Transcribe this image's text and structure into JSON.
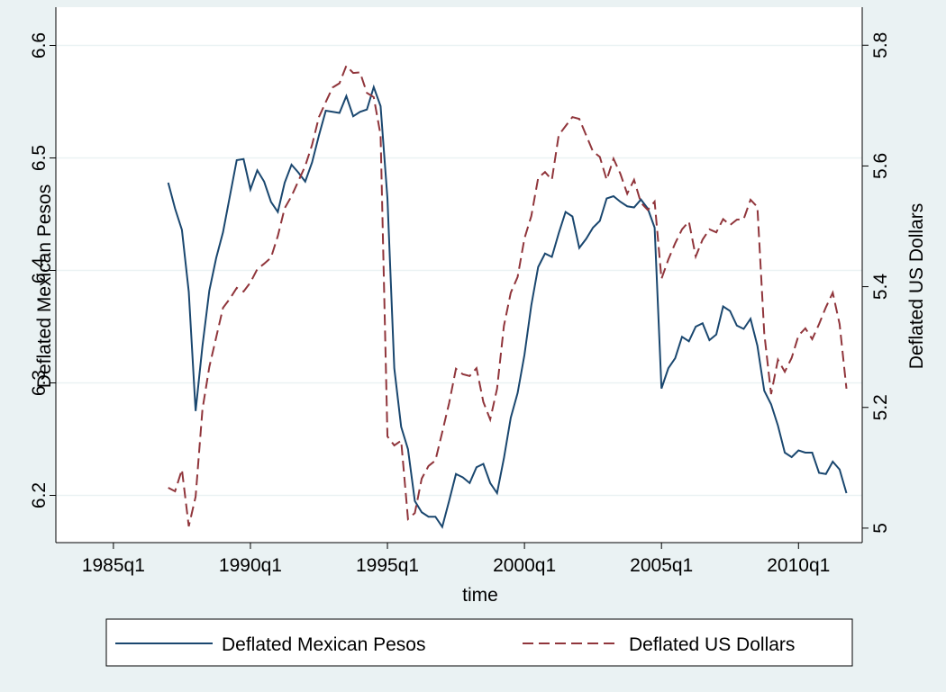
{
  "chart_data": {
    "type": "line",
    "x_label": "time",
    "y_label": "Deflated Mexican Pesos",
    "y2_label": "Deflated US Dollars",
    "x": [
      108,
      109,
      110,
      111,
      112,
      113,
      114,
      115,
      116,
      117,
      118,
      119,
      120,
      121,
      122,
      123,
      124,
      125,
      126,
      127,
      128,
      129,
      130,
      131,
      132,
      133,
      134,
      135,
      136,
      137,
      138,
      139,
      140,
      141,
      142,
      143,
      144,
      145,
      146,
      147,
      148,
      149,
      150,
      151,
      152,
      153,
      154,
      155,
      156,
      157,
      158,
      159,
      160,
      161,
      162,
      163,
      164,
      165,
      166,
      167,
      168,
      169,
      170,
      171,
      172,
      173,
      174,
      175,
      176,
      177,
      178,
      179,
      180,
      181,
      182,
      183,
      184,
      185,
      186,
      187,
      188,
      189,
      190,
      191,
      192,
      193,
      194,
      195,
      196,
      197,
      198,
      199,
      200,
      201,
      202,
      203,
      204,
      205,
      206,
      207
    ],
    "xlim": [
      91.6,
      209.3
    ],
    "xticks": [
      {
        "value": 100,
        "label": "1985q1"
      },
      {
        "value": 120,
        "label": "1990q1"
      },
      {
        "value": 140,
        "label": "1995q1"
      },
      {
        "value": 160,
        "label": "2000q1"
      },
      {
        "value": 180,
        "label": "2005q1"
      },
      {
        "value": 200,
        "label": "2010q1"
      }
    ],
    "ylim": [
      6.158,
      6.634
    ],
    "yticks": [
      6.2,
      6.3,
      6.4,
      6.5,
      6.6
    ],
    "y2lim": [
      4.976,
      5.863
    ],
    "y2ticks": [
      5,
      5.2,
      5.4,
      5.6,
      5.8
    ],
    "grid": true,
    "legend_position": "bottom",
    "series": [
      {
        "name": "Deflated Mexican Pesos",
        "color": "#1a476f",
        "axis": "y",
        "dash": false,
        "values": [
          6.478,
          6.455,
          6.436,
          6.381,
          6.275,
          6.333,
          6.382,
          6.411,
          6.434,
          6.466,
          6.498,
          6.499,
          6.472,
          6.489,
          6.479,
          6.461,
          6.452,
          6.478,
          6.494,
          6.487,
          6.479,
          6.496,
          6.52,
          6.542,
          6.541,
          6.54,
          6.555,
          6.537,
          6.541,
          6.543,
          6.563,
          6.546,
          6.464,
          6.313,
          6.261,
          6.241,
          6.195,
          6.185,
          6.181,
          6.181,
          6.172,
          6.195,
          6.219,
          6.216,
          6.211,
          6.225,
          6.228,
          6.211,
          6.202,
          6.233,
          6.269,
          6.291,
          6.325,
          6.369,
          6.403,
          6.415,
          6.412,
          6.433,
          6.452,
          6.448,
          6.42,
          6.428,
          6.438,
          6.444,
          6.464,
          6.466,
          6.461,
          6.457,
          6.456,
          6.463,
          6.455,
          6.438,
          6.295,
          6.313,
          6.322,
          6.341,
          6.337,
          6.35,
          6.353,
          6.338,
          6.343,
          6.368,
          6.364,
          6.351,
          6.348,
          6.357,
          6.333,
          6.293,
          6.281,
          6.262,
          6.238,
          6.234,
          6.24,
          6.238,
          6.238,
          6.22,
          6.219,
          6.23,
          6.223,
          6.202
        ]
      },
      {
        "name": "Deflated US Dollars",
        "color": "#90353b",
        "axis": "y2",
        "dash": true,
        "values": [
          5.067,
          5.061,
          5.097,
          5.003,
          5.052,
          5.197,
          5.267,
          5.316,
          5.365,
          5.38,
          5.398,
          5.392,
          5.407,
          5.429,
          5.438,
          5.448,
          5.484,
          5.53,
          5.55,
          5.575,
          5.6,
          5.635,
          5.681,
          5.706,
          5.73,
          5.737,
          5.766,
          5.754,
          5.755,
          5.721,
          5.714,
          5.651,
          5.152,
          5.137,
          5.145,
          5.015,
          5.025,
          5.082,
          5.103,
          5.112,
          5.159,
          5.207,
          5.264,
          5.255,
          5.252,
          5.265,
          5.209,
          5.18,
          5.231,
          5.335,
          5.39,
          5.416,
          5.48,
          5.517,
          5.58,
          5.59,
          5.577,
          5.651,
          5.666,
          5.681,
          5.678,
          5.651,
          5.624,
          5.615,
          5.577,
          5.612,
          5.587,
          5.554,
          5.577,
          5.539,
          5.527,
          5.541,
          5.413,
          5.445,
          5.472,
          5.495,
          5.508,
          5.45,
          5.478,
          5.495,
          5.49,
          5.512,
          5.502,
          5.511,
          5.512,
          5.544,
          5.532,
          5.323,
          5.222,
          5.279,
          5.259,
          5.282,
          5.319,
          5.331,
          5.313,
          5.338,
          5.366,
          5.39,
          5.338,
          5.231
        ]
      }
    ]
  }
}
